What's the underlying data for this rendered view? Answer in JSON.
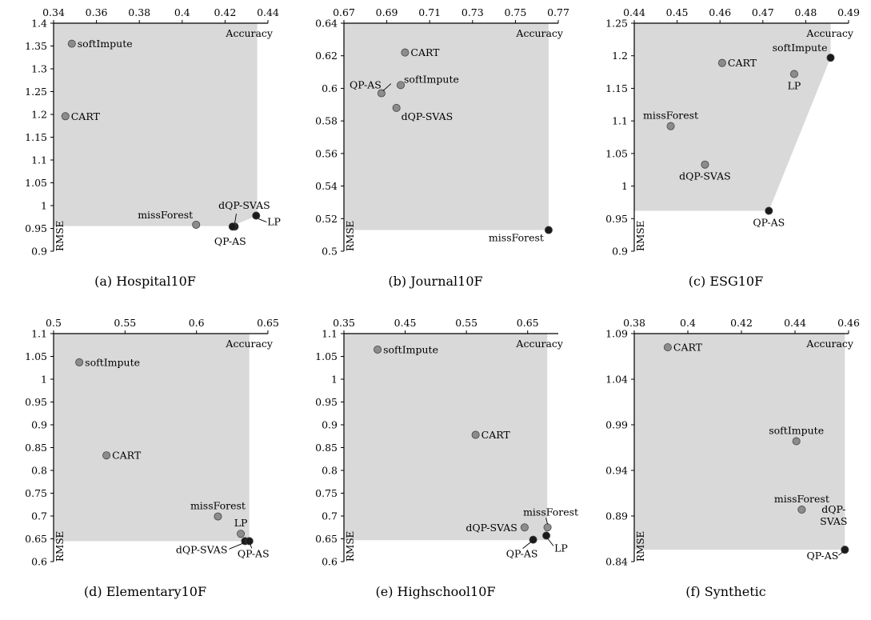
{
  "chart_data": [
    {
      "type": "scatter",
      "caption": "(a) Hospital10F",
      "xlabel": "Accuracy",
      "ylabel": "RMSE",
      "xlim": [
        0.34,
        0.44
      ],
      "ylim": [
        0.9,
        1.4
      ],
      "xtick_step": 0.02,
      "ytick_step": 0.05,
      "xdecimals": 2,
      "ydecimals": 2,
      "region": [
        [
          0.34,
          0.955
        ],
        [
          0.423,
          0.955
        ],
        [
          0.435,
          0.978
        ],
        [
          0.435,
          1.4
        ],
        [
          0.34,
          1.4
        ]
      ],
      "points": [
        {
          "name": "softImpute",
          "x": 0.3485,
          "y": 1.355,
          "color": "#8c8c8c",
          "lpos": "right"
        },
        {
          "name": "CART",
          "x": 0.3455,
          "y": 1.196,
          "color": "#8c8c8c",
          "lpos": "right"
        },
        {
          "name": "missForest",
          "x": 0.4065,
          "y": 0.958,
          "color": "#8c8c8c",
          "lpos": "left-top"
        },
        {
          "name": "dQP-SVAS",
          "x": 0.4245,
          "y": 0.954,
          "color": "#1a1a1a",
          "lpos": "custom-dqp-a"
        },
        {
          "name": "QP-AS",
          "x": 0.4235,
          "y": 0.954,
          "color": "#1a1a1a",
          "lpos": "custom-qp-a"
        },
        {
          "name": "LP",
          "x": 0.4345,
          "y": 0.978,
          "color": "#1a1a1a",
          "lpos": "custom-lp-a"
        }
      ]
    },
    {
      "type": "scatter",
      "caption": "(b) Journal10F",
      "xlabel": "Accuracy",
      "ylabel": "RMSE",
      "xlim": [
        0.67,
        0.77
      ],
      "ylim": [
        0.5,
        0.64
      ],
      "xtick_step": 0.02,
      "ytick_step": 0.02,
      "xdecimals": 2,
      "ydecimals": 2,
      "region": [
        [
          0.67,
          0.513
        ],
        [
          0.7655,
          0.513
        ],
        [
          0.7655,
          0.64
        ],
        [
          0.67,
          0.64
        ]
      ],
      "points": [
        {
          "name": "CART",
          "x": 0.6985,
          "y": 0.622,
          "color": "#8c8c8c",
          "lpos": "right"
        },
        {
          "name": "QP-AS",
          "x": 0.6875,
          "y": 0.597,
          "color": "#8c8c8c",
          "lpos": "custom-qp-b"
        },
        {
          "name": "softImpute",
          "x": 0.6965,
          "y": 0.602,
          "color": "#8c8c8c",
          "lpos": "right-top"
        },
        {
          "name": "dQP-SVAS",
          "x": 0.6945,
          "y": 0.588,
          "color": "#8c8c8c",
          "lpos": "right-bottom"
        },
        {
          "name": "missForest",
          "x": 0.7655,
          "y": 0.513,
          "color": "#1a1a1a",
          "lpos": "left-bottom"
        }
      ]
    },
    {
      "type": "scatter",
      "caption": "(c) ESG10F",
      "xlabel": "Accuracy",
      "ylabel": "RMSE",
      "xlim": [
        0.44,
        0.49
      ],
      "ylim": [
        0.9,
        1.25
      ],
      "xtick_step": 0.01,
      "ytick_step": 0.05,
      "xdecimals": 2,
      "ydecimals": 2,
      "region": [
        [
          0.44,
          0.962
        ],
        [
          0.4714,
          0.962
        ],
        [
          0.4858,
          1.197
        ],
        [
          0.4858,
          1.25
        ],
        [
          0.44,
          1.25
        ]
      ],
      "points": [
        {
          "name": "CART",
          "x": 0.4605,
          "y": 1.189,
          "color": "#8c8c8c",
          "lpos": "right"
        },
        {
          "name": "softImpute",
          "x": 0.4858,
          "y": 1.197,
          "color": "#1a1a1a",
          "lpos": "left-top"
        },
        {
          "name": "LP",
          "x": 0.4773,
          "y": 1.172,
          "color": "#8c8c8c",
          "lpos": "below"
        },
        {
          "name": "missForest",
          "x": 0.4485,
          "y": 1.092,
          "color": "#8c8c8c",
          "lpos": "above"
        },
        {
          "name": "dQP-SVAS",
          "x": 0.4565,
          "y": 1.033,
          "color": "#8c8c8c",
          "lpos": "below"
        },
        {
          "name": "QP-AS",
          "x": 0.4714,
          "y": 0.962,
          "color": "#1a1a1a",
          "lpos": "below"
        }
      ]
    },
    {
      "type": "scatter",
      "caption": "(d) Elementary10F",
      "xlabel": "Accuracy",
      "ylabel": "RMSE",
      "xlim": [
        0.5,
        0.65
      ],
      "ylim": [
        0.6,
        1.1
      ],
      "xtick_step": 0.05,
      "ytick_step": 0.05,
      "xdecimals": 2,
      "ydecimals": 2,
      "region": [
        [
          0.5,
          0.645
        ],
        [
          0.637,
          0.645
        ],
        [
          0.637,
          1.1
        ],
        [
          0.5,
          1.1
        ]
      ],
      "points": [
        {
          "name": "softImpute",
          "x": 0.518,
          "y": 1.037,
          "color": "#8c8c8c",
          "lpos": "right"
        },
        {
          "name": "CART",
          "x": 0.537,
          "y": 0.833,
          "color": "#8c8c8c",
          "lpos": "right"
        },
        {
          "name": "missForest",
          "x": 0.615,
          "y": 0.699,
          "color": "#8c8c8c",
          "lpos": "above"
        },
        {
          "name": "LP",
          "x": 0.631,
          "y": 0.661,
          "color": "#8c8c8c",
          "lpos": "above"
        },
        {
          "name": "dQP-SVAS",
          "x": 0.634,
          "y": 0.645,
          "color": "#1a1a1a",
          "lpos": "custom-dqp-d"
        },
        {
          "name": "QP-AS",
          "x": 0.637,
          "y": 0.645,
          "color": "#1a1a1a",
          "lpos": "custom-qp-d"
        }
      ]
    },
    {
      "type": "scatter",
      "caption": "(e) Highschool10F",
      "xlabel": "Accuracy",
      "ylabel": "RMSE",
      "xlim": [
        0.35,
        0.7
      ],
      "ylim": [
        0.6,
        1.1
      ],
      "xtick_step": 0.1,
      "ytick_step": 0.05,
      "xdecimals": 2,
      "ydecimals": 2,
      "xticks_custom": [
        "0.35",
        "0.45",
        "0.55",
        "0.65"
      ],
      "region": [
        [
          0.35,
          0.647
        ],
        [
          0.682,
          0.647
        ],
        [
          0.682,
          1.1
        ],
        [
          0.35,
          1.1
        ]
      ],
      "points": [
        {
          "name": "softImpute",
          "x": 0.405,
          "y": 1.065,
          "color": "#8c8c8c",
          "lpos": "right"
        },
        {
          "name": "CART",
          "x": 0.565,
          "y": 0.878,
          "color": "#8c8c8c",
          "lpos": "right"
        },
        {
          "name": "missForest",
          "x": 0.6825,
          "y": 0.675,
          "color": "#8c8c8c",
          "lpos": "custom-mf-e"
        },
        {
          "name": "dQP-SVAS",
          "x": 0.645,
          "y": 0.675,
          "color": "#8c8c8c",
          "lpos": "left"
        },
        {
          "name": "QP-AS",
          "x": 0.659,
          "y": 0.648,
          "color": "#1a1a1a",
          "lpos": "custom-qp-e"
        },
        {
          "name": "LP",
          "x": 0.6805,
          "y": 0.657,
          "color": "#1a1a1a",
          "lpos": "custom-lp-e"
        }
      ]
    },
    {
      "type": "scatter",
      "caption": "(f) Synthetic",
      "xlabel": "Accuracy",
      "ylabel": "RMSE",
      "xlim": [
        0.38,
        0.46
      ],
      "ylim": [
        0.84,
        1.09
      ],
      "xtick_step": 0.02,
      "ytick_step": 0.05,
      "xdecimals": 2,
      "ydecimals": 2,
      "region": [
        [
          0.38,
          0.853
        ],
        [
          0.4586,
          0.853
        ],
        [
          0.4586,
          1.09
        ],
        [
          0.38,
          1.09
        ]
      ],
      "points": [
        {
          "name": "CART",
          "x": 0.3925,
          "y": 1.075,
          "color": "#8c8c8c",
          "lpos": "right"
        },
        {
          "name": "softImpute",
          "x": 0.4405,
          "y": 0.972,
          "color": "#8c8c8c",
          "lpos": "above"
        },
        {
          "name": "missForest",
          "x": 0.4425,
          "y": 0.897,
          "color": "#8c8c8c",
          "lpos": "above"
        },
        {
          "name": "dQP-\nSVAS",
          "x": 0.4586,
          "y": 0.853,
          "color": "#1a1a1a",
          "lpos": "custom-dqp-f"
        },
        {
          "name": "QP-AS",
          "x": 0.4586,
          "y": 0.853,
          "color": "#1a1a1a",
          "lpos": "custom-qp-f"
        }
      ]
    }
  ]
}
